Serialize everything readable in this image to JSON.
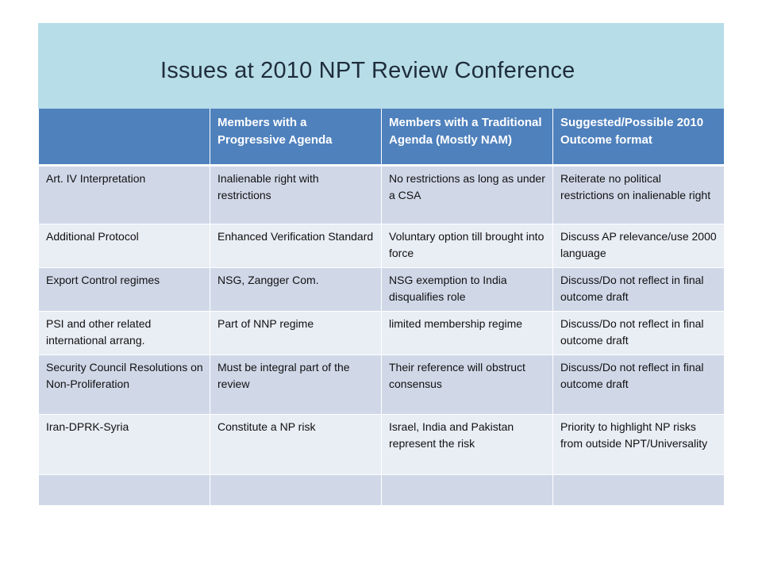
{
  "slide": {
    "title": "Issues at 2010 NPT Review Conference"
  },
  "table": {
    "headers": [
      "",
      "Members with a Progressive Agenda",
      "Members with a Traditional  Agenda (Mostly NAM)",
      "Suggested/Possible 2010 Outcome format"
    ],
    "rows": [
      [
        "Art. IV Interpretation",
        "Inalienable right with restrictions",
        "No restrictions  as long as under a CSA",
        "Reiterate no political restrictions on inalienable right"
      ],
      [
        "Additional Protocol",
        "Enhanced Verification Standard",
        "Voluntary option till brought into force",
        "Discuss AP relevance/use 2000 language"
      ],
      [
        "Export Control regimes",
        "NSG, Zangger Com.",
        "NSG exemption to India disqualifies role",
        "Discuss/Do not reflect in final outcome draft"
      ],
      [
        "PSI and other related international arrang.",
        "Part of NNP regime",
        "limited membership regime",
        "Discuss/Do not reflect in final outcome draft"
      ],
      [
        "Security Council Resolutions on Non-Proliferation",
        "Must be integral part of the review",
        "Their reference will obstruct consensus",
        "Discuss/Do not reflect in final outcome draft"
      ],
      [
        "Iran-DPRK-Syria",
        "Constitute a NP risk",
        "Israel, India and Pakistan represent the risk",
        "Priority to highlight NP risks from outside NPT/Universality"
      ],
      [
        "",
        "",
        "",
        ""
      ]
    ]
  },
  "colors": {
    "title_band": "#b7dde8",
    "header": "#4f81bd",
    "row_dark": "#d0d8e8",
    "row_light": "#e9edf4"
  }
}
